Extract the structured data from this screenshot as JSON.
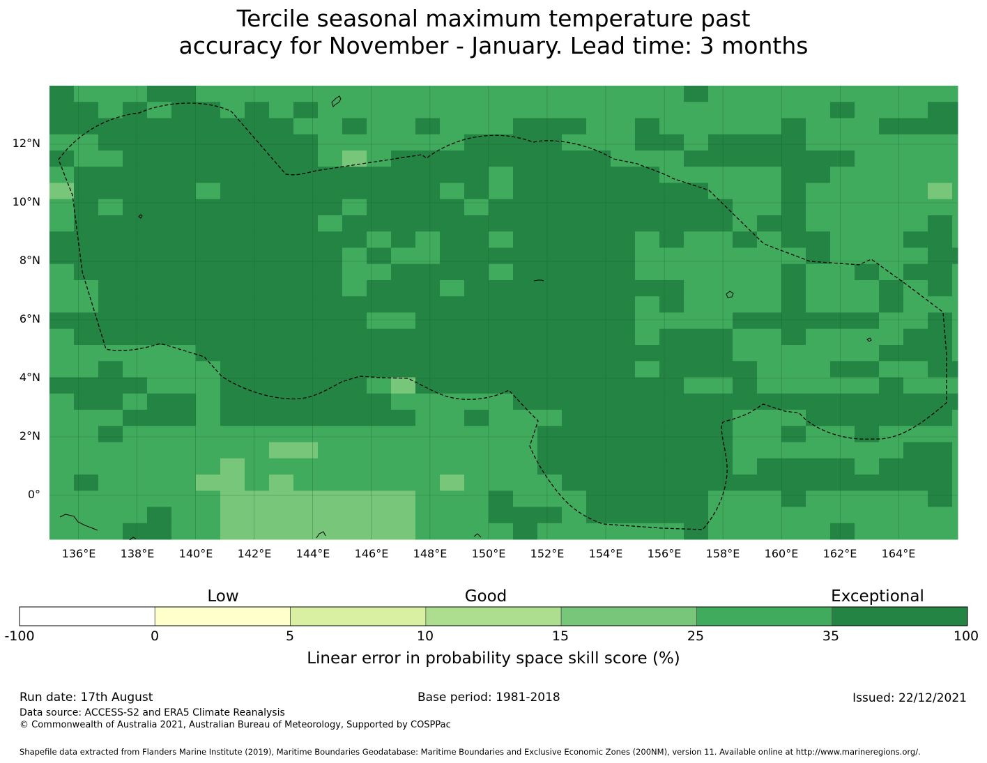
{
  "title": {
    "line1": "Tercile seasonal maximum temperature past",
    "line2": "accuracy for November - January. Lead time: 3 months"
  },
  "map": {
    "lon_range": [
      135,
      166
    ],
    "lat_range": [
      -1.5,
      14
    ],
    "lat_labels": [
      "12°N",
      "10°N",
      "8°N",
      "6°N",
      "4°N",
      "2°N",
      "0°"
    ],
    "lon_labels": [
      "136°E",
      "138°E",
      "140°E",
      "142°E",
      "144°E",
      "146°E",
      "148°E",
      "150°E",
      "152°E",
      "154°E",
      "156°E",
      "158°E",
      "160°E",
      "162°E",
      "164°E"
    ],
    "eez_boundary": "dashed"
  },
  "legend": {
    "categories": [
      "Low",
      "Good",
      "Exceptional"
    ],
    "ticks": [
      "-100",
      "0",
      "5",
      "10",
      "15",
      "25",
      "35",
      "100"
    ],
    "colors": [
      "#ffffff",
      "#ffffcc",
      "#d9f0a3",
      "#addd8e",
      "#78c679",
      "#41ab5d",
      "#238443"
    ],
    "label": "Linear error in probability space skill score (%)"
  },
  "footer": {
    "run_date": "Run date: 17th August",
    "base_period": "Base period: 1981-2018",
    "issued": "Issued: 22/12/2021",
    "data_source": "Data source: ACCESS-S2 and ERA5 Climate Reanalysis",
    "copyright": "© Commonwealth of Australia 2021, Australian Bureau of Meteorology, Supported by COSPPac",
    "shapefile": "Shapefile data extracted from Flanders Marine Institute (2019), Maritime Boundaries Geodatabase: Maritime Boundaries and Exclusive Economic Zones (200NM), version 11. Available online at http://www.marineregions.org/."
  }
}
